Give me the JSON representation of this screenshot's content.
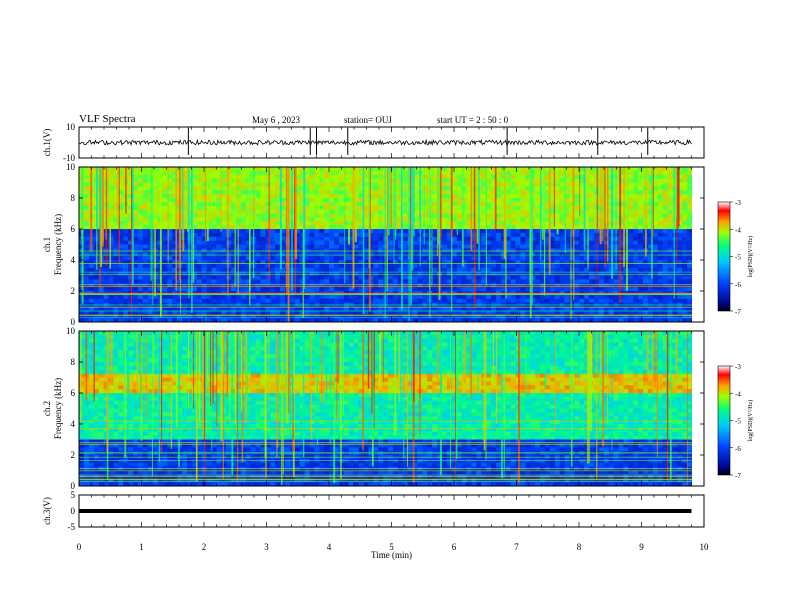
{
  "header": {
    "title": "VLF Spectra",
    "date": "May 6 , 2023",
    "station": "station= OUJ",
    "start": "start UT =  2 : 50 : 0"
  },
  "chart_data": [
    {
      "type": "line",
      "panel": "waveform ch.1",
      "ylabel": "ch.1(V)",
      "ylim": [
        -10,
        10
      ],
      "yticks": [
        "10",
        "-10"
      ],
      "xlim": [
        0,
        10
      ],
      "series": [
        {
          "values": "noise around 0 V, amplitude ~1.5 V with sferic spikes"
        }
      ],
      "spikes_min": [
        1.75,
        3.7,
        3.8,
        4.3,
        6.85,
        8.3,
        9.1
      ]
    },
    {
      "type": "heatmap",
      "panel": "spectrogram ch.1",
      "ylabel": "ch.1  Frequency (kHz)",
      "ylim": [
        0,
        10
      ],
      "yticks": [
        "0",
        "2",
        "4",
        "6",
        "8",
        "10"
      ],
      "xlim": [
        0,
        10
      ],
      "colorbar": {
        "label": "log(PSD)(V²/Hz)",
        "range": [
          -7,
          -3
        ],
        "ticks": [
          "-3",
          "-4",
          "-5",
          "-6",
          "-7"
        ]
      },
      "bands": [
        {
          "freq_khz": [
            6.0,
            10.0
          ],
          "level": -4.6
        },
        {
          "freq_khz": [
            0.0,
            6.0
          ],
          "level": -6.3
        }
      ],
      "note": "vertical sferic streaks throughout; horizontal VLF transmitter lines below 5 kHz; quieter interval 3.7–5.0 min"
    },
    {
      "type": "heatmap",
      "panel": "spectrogram ch.2",
      "ylabel": "ch.2  Frequency (kHz)",
      "ylim": [
        0,
        10
      ],
      "yticks": [
        "0",
        "2",
        "4",
        "6",
        "8",
        "10"
      ],
      "xlim": [
        0,
        10
      ],
      "colorbar": {
        "label": "log(PSD)(V²/Hz)",
        "range": [
          -7,
          -3
        ],
        "ticks": [
          "-3",
          "-4",
          "-5",
          "-6",
          "-7"
        ]
      },
      "bands": [
        {
          "freq_khz": [
            6.0,
            7.2
          ],
          "level": -4.3
        },
        {
          "freq_khz": [
            3.0,
            10.0
          ],
          "level": -5.2
        },
        {
          "freq_khz": [
            0.0,
            3.0
          ],
          "level": -6.3
        }
      ],
      "note": "strong green band near 6–7 kHz from 2.0 min onward; vertical sferic streaks"
    },
    {
      "type": "line",
      "panel": "waveform ch.3",
      "ylabel": "ch.3(V)",
      "ylim": [
        -5,
        5
      ],
      "yticks": [
        "5",
        "0",
        "-5"
      ],
      "xlim": [
        0,
        10
      ],
      "series": [
        {
          "values": "flat trace near 0 V"
        }
      ],
      "xlabel": "Time  (min)",
      "xticks": [
        "0",
        "1",
        "2",
        "3",
        "4",
        "5",
        "6",
        "7",
        "8",
        "9",
        "10"
      ]
    }
  ]
}
